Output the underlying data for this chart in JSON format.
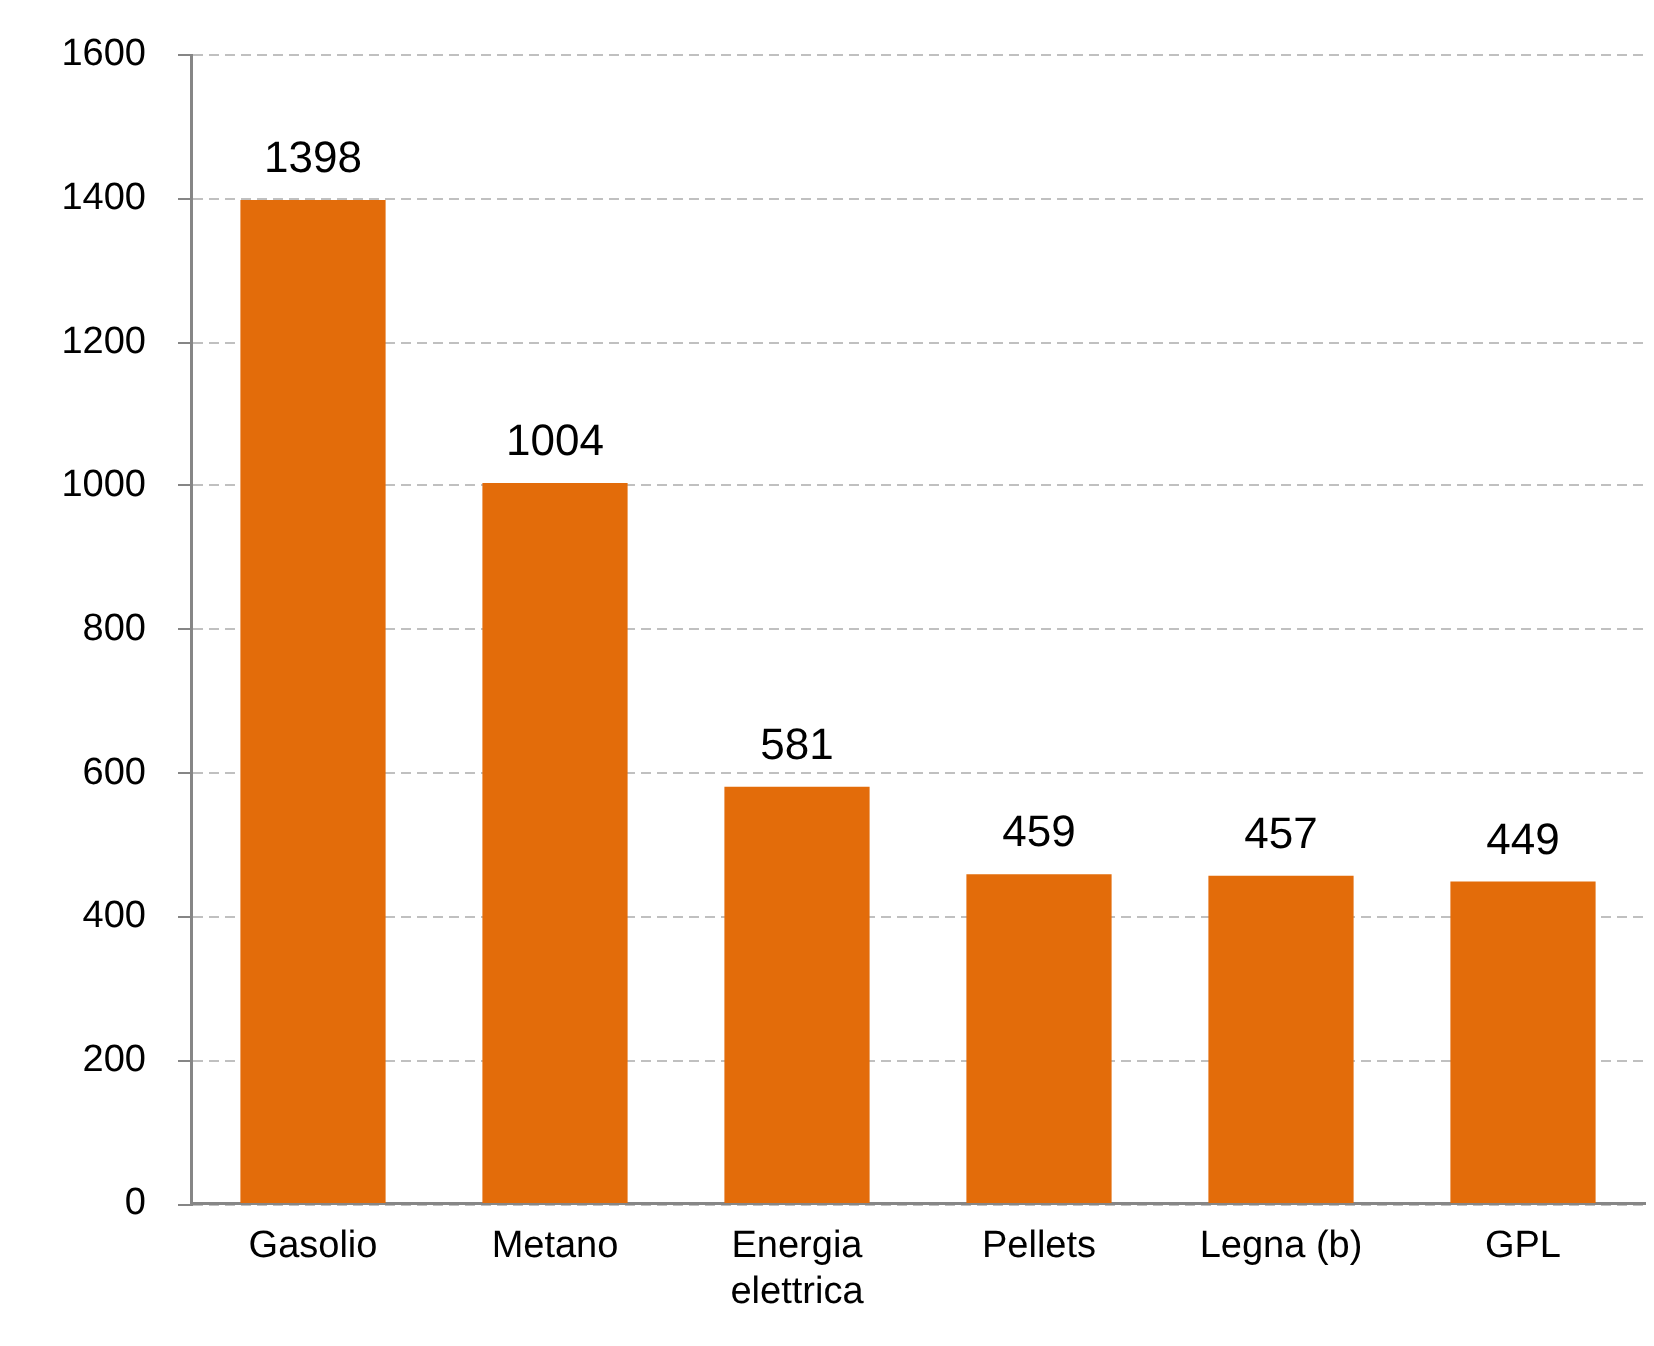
{
  "chart_data": {
    "type": "bar",
    "categories": [
      "Gasolio",
      "Metano",
      "Energia elettrica",
      "Pellets",
      "Legna (b)",
      "GPL"
    ],
    "values": [
      1398,
      1004,
      581,
      459,
      457,
      449
    ],
    "color": "#e36c0a",
    "ylim": [
      0,
      1600
    ],
    "yticks": [
      0,
      200,
      400,
      600,
      800,
      1000,
      1200,
      1400,
      1600
    ],
    "grid": "y",
    "data_labels": true
  }
}
